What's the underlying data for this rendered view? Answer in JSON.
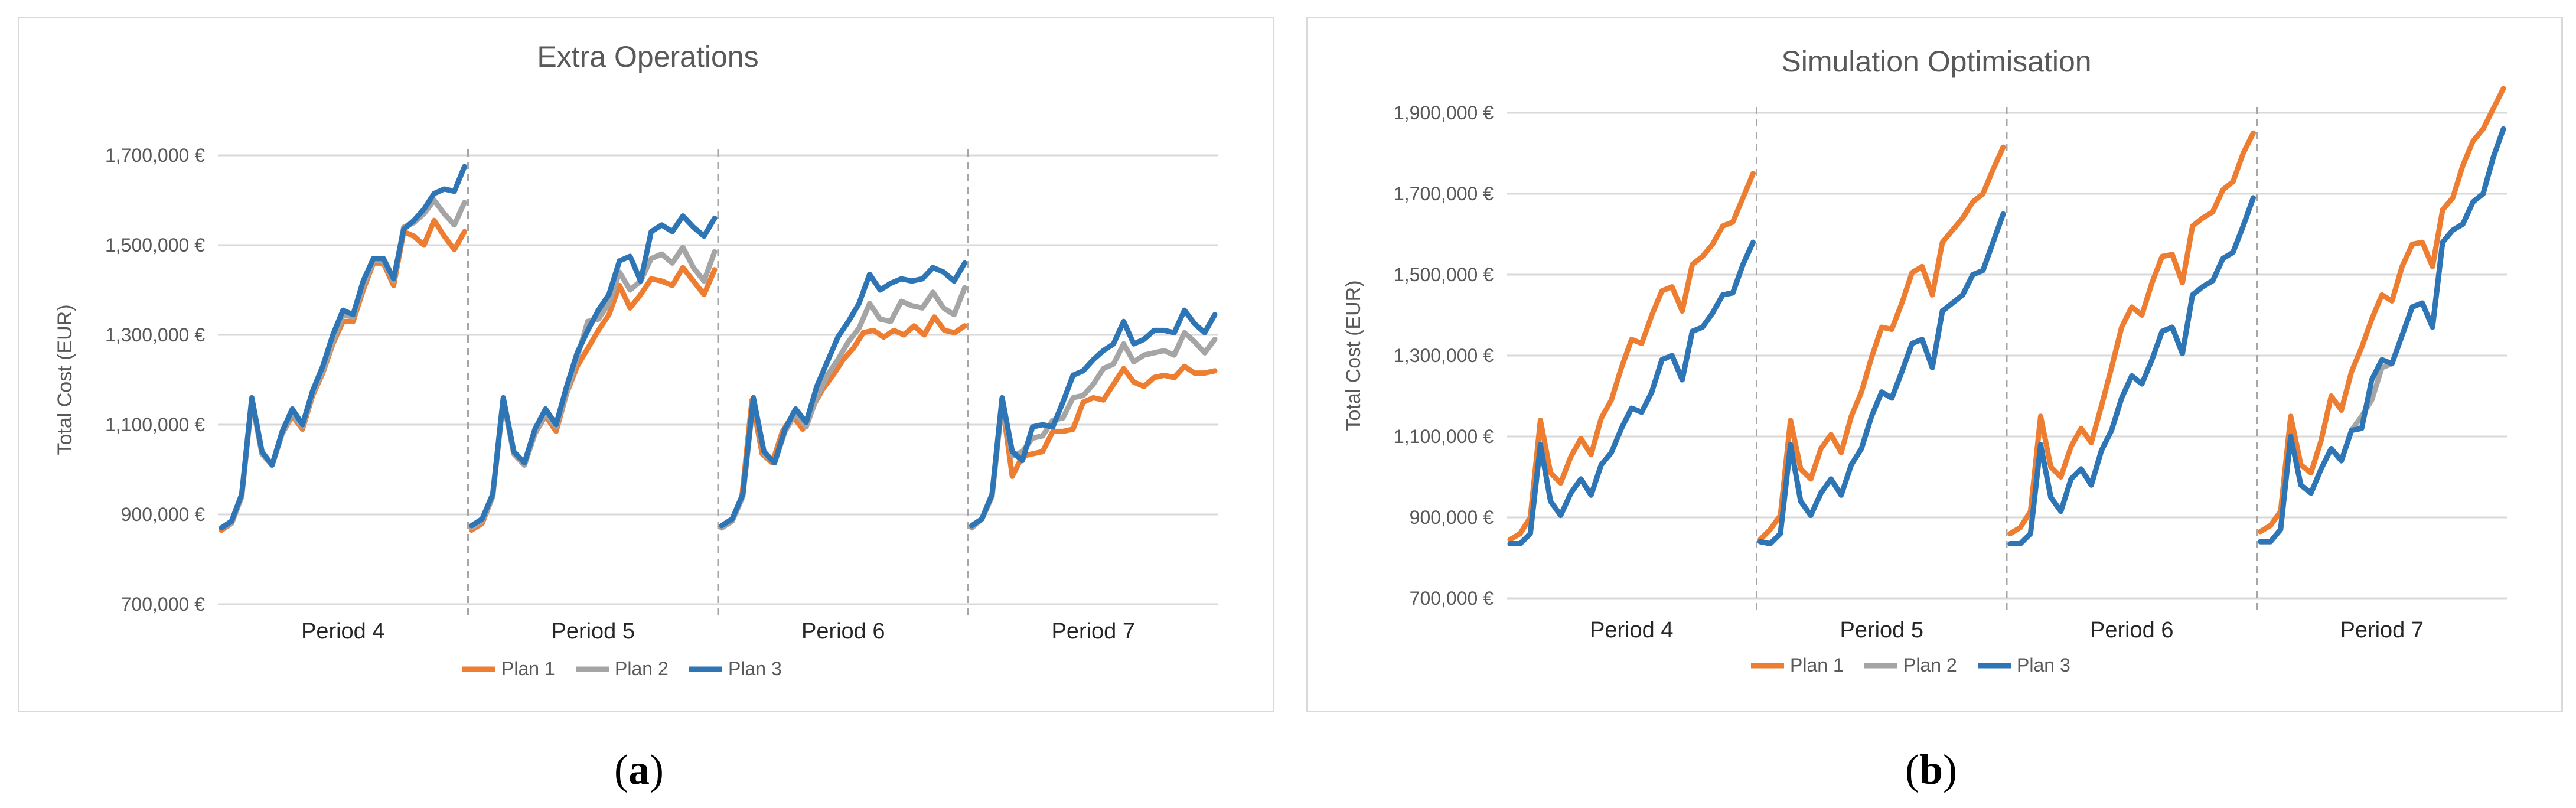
{
  "captions": {
    "a_open": "(",
    "a_letter": "a",
    "a_close": ")",
    "b_open": "(",
    "b_letter": "b",
    "b_close": ")"
  },
  "colors": {
    "plan1": "#ED7D31",
    "plan2": "#A5A5A5",
    "plan3": "#2E75B6",
    "grid": "#d9d9d9",
    "separator": "#a6a6a6"
  },
  "chart_data": [
    {
      "type": "line",
      "title": "Extra Operations",
      "xlabel": "",
      "ylabel": "Total Cost (EUR)",
      "ylim": [
        700000,
        1700000
      ],
      "yticks": [
        "700,000 €",
        "900,000 €",
        "1,100,000 €",
        "1,300,000 €",
        "1,500,000 €",
        "1,700,000 €"
      ],
      "categories": [
        "Period 4",
        "Period 5",
        "Period 6",
        "Period 7"
      ],
      "grid": true,
      "legend_position": "bottom",
      "series": [
        {
          "name": "Plan 1",
          "values": [
            [
              865000,
              880000,
              940000,
              1155000,
              1035000,
              1010000,
              1080000,
              1120000,
              1090000,
              1165000,
              1215000,
              1280000,
              1330000,
              1330000,
              1400000,
              1460000,
              1460000,
              1410000,
              1530000,
              1520000,
              1500000,
              1555000,
              1520000,
              1490000,
              1530000
            ],
            [
              865000,
              880000,
              940000,
              1155000,
              1035000,
              1010000,
              1080000,
              1120000,
              1085000,
              1170000,
              1230000,
              1270000,
              1310000,
              1345000,
              1410000,
              1360000,
              1390000,
              1425000,
              1420000,
              1410000,
              1450000,
              1420000,
              1390000,
              1445000
            ],
            [
              870000,
              885000,
              940000,
              1155000,
              1035000,
              1015000,
              1085000,
              1120000,
              1090000,
              1140000,
              1180000,
              1210000,
              1245000,
              1270000,
              1305000,
              1310000,
              1295000,
              1310000,
              1300000,
              1320000,
              1300000,
              1340000,
              1310000,
              1305000,
              1320000
            ],
            [
              870000,
              890000,
              940000,
              1150000,
              985000,
              1030000,
              1035000,
              1040000,
              1085000,
              1085000,
              1090000,
              1150000,
              1160000,
              1155000,
              1190000,
              1225000,
              1195000,
              1185000,
              1205000,
              1210000,
              1205000,
              1230000,
              1215000,
              1215000,
              1220000
            ]
          ]
        },
        {
          "name": "Plan 2",
          "values": [
            [
              870000,
              880000,
              940000,
              1155000,
              1035000,
              1010000,
              1080000,
              1125000,
              1095000,
              1170000,
              1220000,
              1285000,
              1345000,
              1340000,
              1410000,
              1465000,
              1465000,
              1420000,
              1540000,
              1550000,
              1570000,
              1600000,
              1570000,
              1545000,
              1595000
            ],
            [
              870000,
              885000,
              940000,
              1155000,
              1035000,
              1010000,
              1080000,
              1125000,
              1095000,
              1170000,
              1250000,
              1330000,
              1335000,
              1370000,
              1440000,
              1400000,
              1420000,
              1470000,
              1480000,
              1460000,
              1495000,
              1450000,
              1420000,
              1485000
            ],
            [
              870000,
              885000,
              940000,
              1155000,
              1035000,
              1015000,
              1085000,
              1125000,
              1095000,
              1160000,
              1210000,
              1245000,
              1285000,
              1315000,
              1370000,
              1335000,
              1330000,
              1375000,
              1365000,
              1360000,
              1395000,
              1360000,
              1345000,
              1405000
            ],
            [
              870000,
              890000,
              940000,
              1150000,
              1030000,
              1040000,
              1070000,
              1075000,
              1110000,
              1115000,
              1160000,
              1165000,
              1190000,
              1225000,
              1235000,
              1280000,
              1240000,
              1255000,
              1260000,
              1265000,
              1255000,
              1305000,
              1285000,
              1260000,
              1290000
            ]
          ]
        },
        {
          "name": "Plan 3",
          "values": [
            [
              870000,
              885000,
              945000,
              1160000,
              1040000,
              1010000,
              1085000,
              1135000,
              1100000,
              1175000,
              1230000,
              1300000,
              1355000,
              1345000,
              1420000,
              1470000,
              1470000,
              1425000,
              1535000,
              1555000,
              1580000,
              1615000,
              1625000,
              1620000,
              1675000
            ],
            [
              875000,
              890000,
              945000,
              1160000,
              1040000,
              1015000,
              1090000,
              1135000,
              1100000,
              1185000,
              1260000,
              1310000,
              1355000,
              1390000,
              1465000,
              1475000,
              1420000,
              1530000,
              1545000,
              1530000,
              1565000,
              1540000,
              1520000,
              1560000
            ],
            [
              875000,
              890000,
              945000,
              1160000,
              1040000,
              1015000,
              1090000,
              1135000,
              1105000,
              1185000,
              1240000,
              1295000,
              1330000,
              1370000,
              1435000,
              1400000,
              1415000,
              1425000,
              1420000,
              1425000,
              1450000,
              1440000,
              1420000,
              1460000
            ],
            [
              875000,
              890000,
              945000,
              1160000,
              1040000,
              1020000,
              1095000,
              1100000,
              1095000,
              1150000,
              1210000,
              1220000,
              1245000,
              1265000,
              1280000,
              1330000,
              1280000,
              1290000,
              1310000,
              1310000,
              1305000,
              1355000,
              1325000,
              1305000,
              1345000
            ]
          ]
        }
      ]
    },
    {
      "type": "line",
      "title": "Simulation Optimisation",
      "xlabel": "",
      "ylabel": "Total Cost (EUR)",
      "ylim": [
        700000,
        1900000
      ],
      "yticks": [
        "700,000 €",
        "900,000 €",
        "1,100,000 €",
        "1,300,000 €",
        "1,500,000 €",
        "1,700,000 €",
        "1,900,000 €"
      ],
      "categories": [
        "Period 4",
        "Period 5",
        "Period 6",
        "Period 7"
      ],
      "grid": true,
      "legend_position": "bottom",
      "series": [
        {
          "name": "Plan 1",
          "values": [
            [
              845000,
              860000,
              900000,
              1140000,
              1010000,
              985000,
              1050000,
              1095000,
              1055000,
              1145000,
              1190000,
              1270000,
              1340000,
              1330000,
              1400000,
              1460000,
              1470000,
              1410000,
              1525000,
              1545000,
              1575000,
              1620000,
              1630000,
              1690000,
              1750000
            ],
            [
              845000,
              870000,
              905000,
              1140000,
              1020000,
              995000,
              1070000,
              1105000,
              1060000,
              1150000,
              1210000,
              1295000,
              1370000,
              1365000,
              1430000,
              1505000,
              1520000,
              1450000,
              1580000,
              1610000,
              1640000,
              1680000,
              1700000,
              1760000,
              1815000
            ],
            [
              860000,
              875000,
              915000,
              1150000,
              1025000,
              1000000,
              1075000,
              1120000,
              1085000,
              1175000,
              1270000,
              1370000,
              1420000,
              1400000,
              1480000,
              1545000,
              1550000,
              1480000,
              1620000,
              1640000,
              1655000,
              1710000,
              1730000,
              1800000,
              1850000
            ],
            [
              865000,
              880000,
              915000,
              1150000,
              1030000,
              1010000,
              1090000,
              1200000,
              1165000,
              1260000,
              1320000,
              1390000,
              1450000,
              1435000,
              1520000,
              1575000,
              1580000,
              1520000,
              1660000,
              1690000,
              1770000,
              1830000,
              1860000,
              1910000,
              1960000
            ]
          ]
        },
        {
          "name": "Plan 2",
          "values": [
            [
              835000,
              835000,
              860000,
              1080000,
              940000,
              905000,
              960000,
              995000,
              955000,
              1030000,
              1060000,
              1120000,
              1170000,
              1160000,
              1210000,
              1290000,
              1300000,
              1240000,
              1360000,
              1370000,
              1405000,
              1450000,
              1455000,
              1525000,
              1580000
            ],
            [
              840000,
              835000,
              860000,
              1080000,
              940000,
              905000,
              960000,
              995000,
              955000,
              1030000,
              1070000,
              1150000,
              1210000,
              1195000,
              1260000,
              1330000,
              1340000,
              1270000,
              1410000,
              1430000,
              1450000,
              1500000,
              1510000,
              1580000,
              1650000
            ],
            [
              835000,
              835000,
              860000,
              1080000,
              950000,
              915000,
              995000,
              1020000,
              980000,
              1065000,
              1115000,
              1195000,
              1250000,
              1230000,
              1290000,
              1360000,
              1370000,
              1305000,
              1450000,
              1470000,
              1485000,
              1540000,
              1555000,
              1620000,
              1690000
            ],
            [
              840000,
              840000,
              870000,
              1100000,
              980000,
              960000,
              1020000,
              1070000,
              1040000,
              1115000,
              1150000,
              1190000,
              1270000,
              1280000,
              1350000,
              1420000,
              1430000,
              1370000,
              1580000,
              1610000,
              1625000,
              1680000,
              1700000,
              1790000,
              1860000
            ]
          ]
        },
        {
          "name": "Plan 3",
          "values": [
            [
              835000,
              835000,
              860000,
              1080000,
              940000,
              905000,
              960000,
              995000,
              955000,
              1030000,
              1060000,
              1120000,
              1170000,
              1160000,
              1210000,
              1290000,
              1300000,
              1240000,
              1360000,
              1370000,
              1405000,
              1450000,
              1455000,
              1525000,
              1580000
            ],
            [
              840000,
              835000,
              860000,
              1080000,
              940000,
              905000,
              960000,
              995000,
              955000,
              1030000,
              1070000,
              1150000,
              1210000,
              1195000,
              1260000,
              1330000,
              1340000,
              1270000,
              1410000,
              1430000,
              1450000,
              1500000,
              1510000,
              1580000,
              1650000
            ],
            [
              835000,
              835000,
              860000,
              1080000,
              950000,
              915000,
              995000,
              1020000,
              980000,
              1065000,
              1115000,
              1195000,
              1250000,
              1230000,
              1290000,
              1360000,
              1370000,
              1305000,
              1450000,
              1470000,
              1485000,
              1540000,
              1555000,
              1620000,
              1690000
            ],
            [
              840000,
              840000,
              870000,
              1100000,
              980000,
              960000,
              1020000,
              1070000,
              1040000,
              1115000,
              1120000,
              1240000,
              1290000,
              1280000,
              1350000,
              1420000,
              1430000,
              1370000,
              1580000,
              1610000,
              1625000,
              1680000,
              1700000,
              1790000,
              1860000
            ]
          ]
        }
      ]
    }
  ]
}
